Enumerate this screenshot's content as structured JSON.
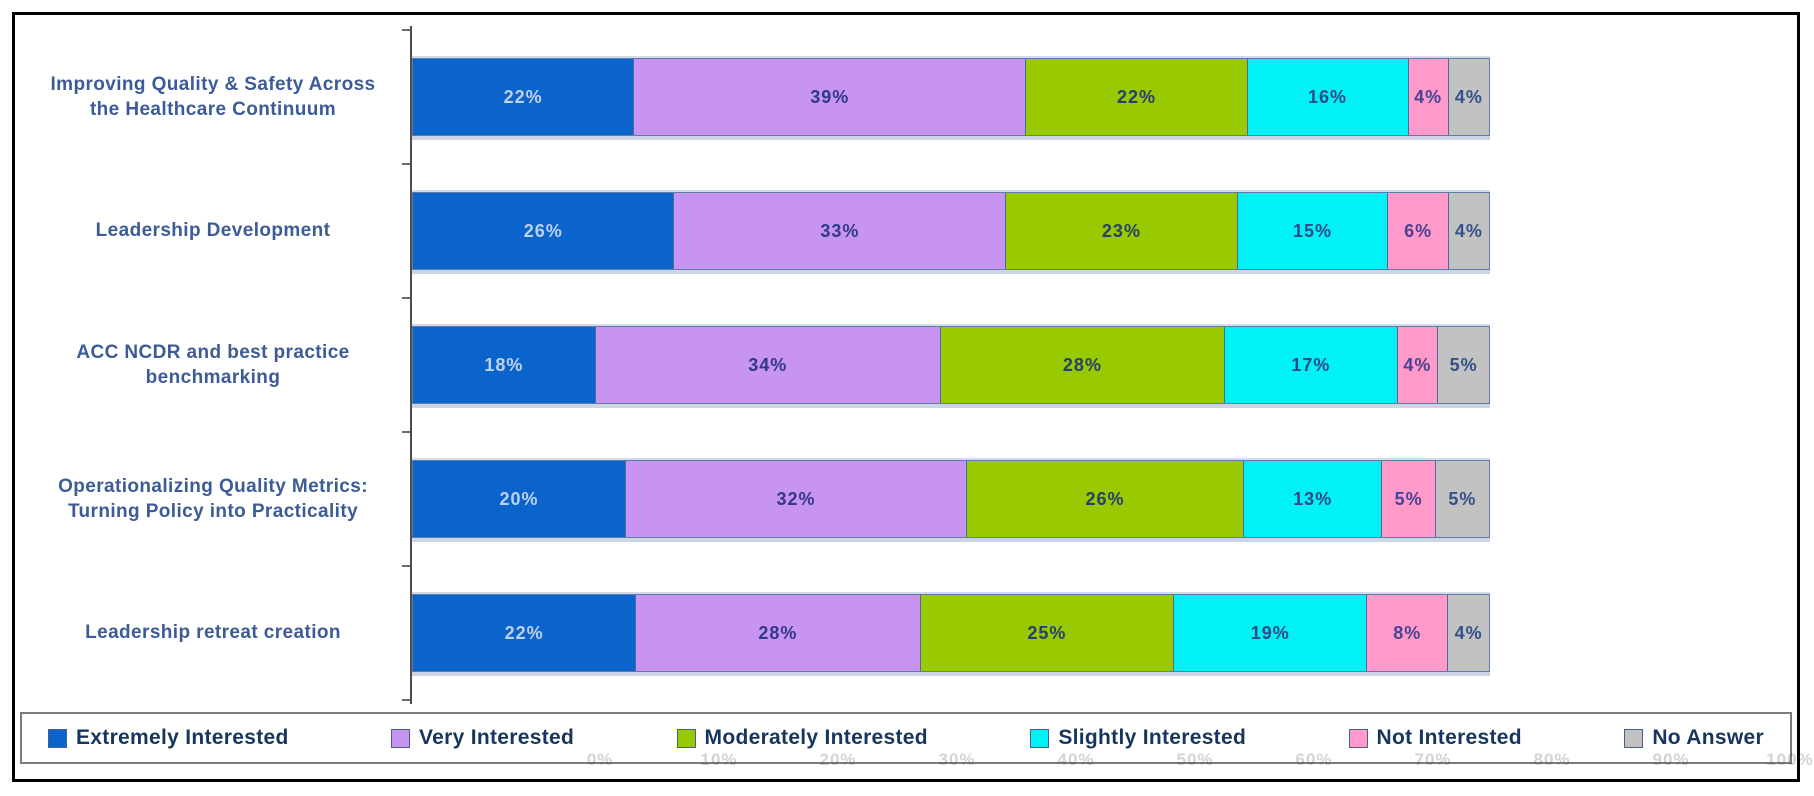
{
  "chart_data": {
    "type": "bar",
    "orientation": "horizontal",
    "stacked": true,
    "title": "",
    "xlabel": "",
    "ylabel": "",
    "xlim": [
      0,
      100
    ],
    "grid": false,
    "legend_position": "bottom",
    "value_suffix": "%",
    "categories": [
      "Improving Quality & Safety Across the Healthcare Continuum",
      "Leadership Development",
      "ACC NCDR and best practice benchmarking",
      "Operationalizing Quality Metrics: Turning Policy into Practicality",
      "Leadership retreat creation"
    ],
    "series": [
      {
        "name": "Extremely Interested",
        "color": "#0b63cc",
        "label_color": "#bed1ef",
        "values": [
          22,
          26,
          18,
          20,
          22
        ]
      },
      {
        "name": "Very Interested",
        "color": "#c795f1",
        "label_color": "#32388b",
        "values": [
          39,
          33,
          34,
          32,
          28
        ]
      },
      {
        "name": "Moderately Interested",
        "color": "#99c900",
        "label_color": "#27406f",
        "values": [
          22,
          23,
          28,
          26,
          25
        ]
      },
      {
        "name": "Slightly Interested",
        "color": "#00f2f7",
        "label_color": "#2d4a86",
        "values": [
          16,
          15,
          17,
          13,
          19
        ]
      },
      {
        "name": "Not Interested",
        "color": "#ff9aca",
        "label_color": "#4a4292",
        "values": [
          4,
          6,
          4,
          5,
          8
        ]
      },
      {
        "name": "No Answer",
        "color": "#c2c2c2",
        "label_color": "#33508a",
        "values": [
          4,
          4,
          5,
          5,
          4
        ]
      }
    ],
    "x_ticks": [
      "0%",
      "10%",
      "20%",
      "30%",
      "40%",
      "50%",
      "60%",
      "70%",
      "80%",
      "90%",
      "100%"
    ]
  },
  "legend": {
    "items": [
      {
        "label": "Extremely Interested",
        "color": "#0b63cc"
      },
      {
        "label": "Very Interested",
        "color": "#c795f1"
      },
      {
        "label": "Moderately Interested",
        "color": "#99c900"
      },
      {
        "label": "Slightly Interested",
        "color": "#00f2f7"
      },
      {
        "label": "Not Interested",
        "color": "#ff9aca"
      },
      {
        "label": "No Answer",
        "color": "#c2c2c2"
      }
    ]
  },
  "colors": {
    "frame_border": "#000000",
    "category_text": "#3d5b97",
    "legend_text": "#17365d",
    "segment_outline": "#4a6a9b",
    "axis_line": "#4d4d4d"
  }
}
